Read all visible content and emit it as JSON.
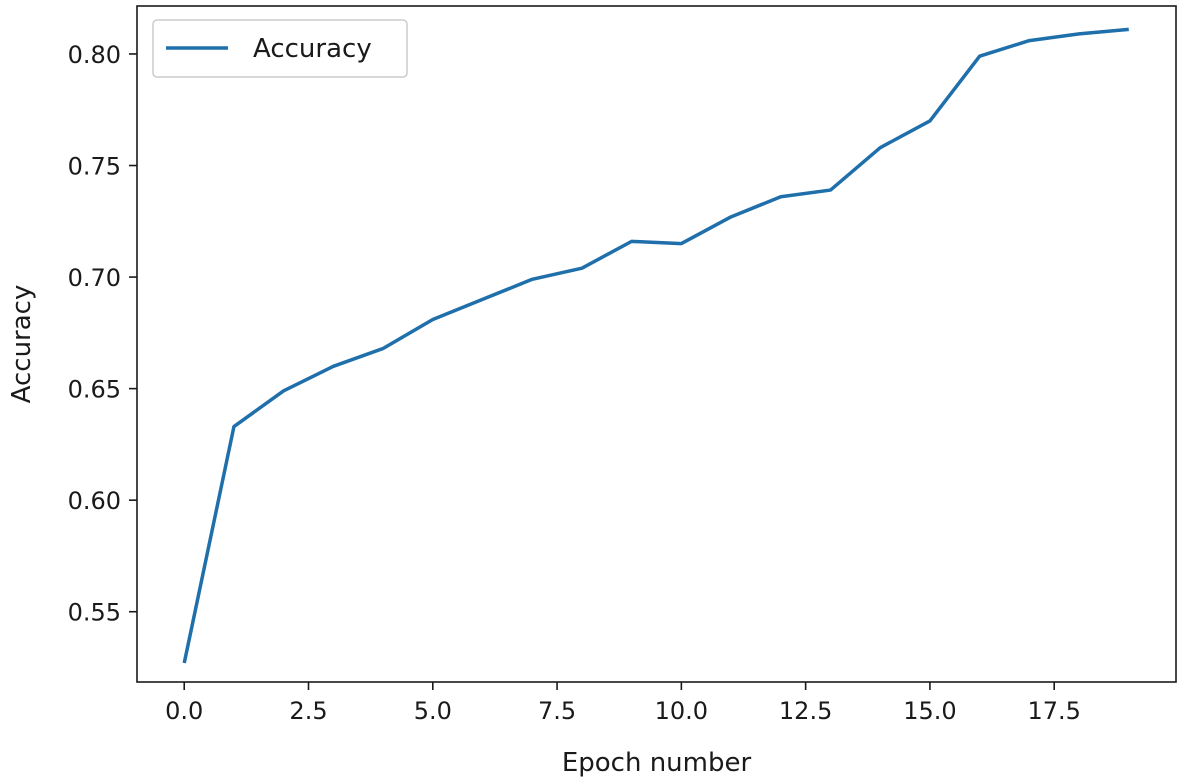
{
  "chart_data": {
    "type": "line",
    "title": "",
    "xlabel": "Epoch number",
    "ylabel": "Accuracy",
    "xlim": [
      -0.95,
      19.95
    ],
    "ylim": [
      0.5185,
      0.8215
    ],
    "xticks": [
      0.0,
      2.5,
      5.0,
      7.5,
      10.0,
      12.5,
      15.0,
      17.5
    ],
    "xtick_labels": [
      "0.0",
      "2.5",
      "5.0",
      "7.5",
      "10.0",
      "12.5",
      "15.0",
      "17.5"
    ],
    "yticks": [
      0.55,
      0.6,
      0.65,
      0.7,
      0.75,
      0.8
    ],
    "ytick_labels": [
      "0.55",
      "0.60",
      "0.65",
      "0.70",
      "0.75",
      "0.80"
    ],
    "grid": false,
    "legend_position": "top-left",
    "series": [
      {
        "name": "Accuracy",
        "color": "#1f6fab",
        "x": [
          0,
          1,
          2,
          3,
          4,
          5,
          6,
          7,
          8,
          9,
          10,
          11,
          12,
          13,
          14,
          15,
          16,
          17,
          18,
          19
        ],
        "y": [
          0.527,
          0.633,
          0.649,
          0.66,
          0.668,
          0.681,
          0.69,
          0.699,
          0.704,
          0.716,
          0.715,
          0.727,
          0.736,
          0.739,
          0.758,
          0.77,
          0.799,
          0.806,
          0.809,
          0.811
        ]
      }
    ]
  }
}
